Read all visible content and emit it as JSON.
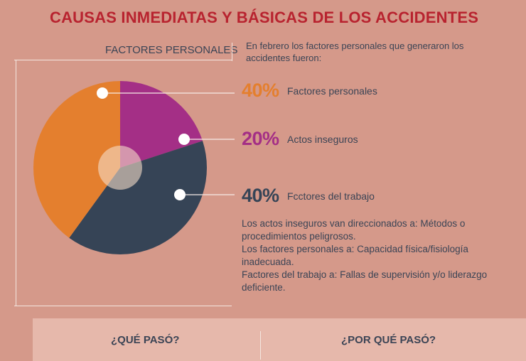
{
  "header": {
    "title": "CAUSAS INMEDIATAS Y BÁSICAS DE LOS ACCIDENTES",
    "section_label": "FACTORES PERSONALES"
  },
  "intro": "En febrero los factores personales que generaron los accidentes fueron:",
  "chart_data": {
    "type": "pie",
    "slices": [
      {
        "label": "Factores personales",
        "value": 40,
        "display": "40%",
        "color": "#e47f2e"
      },
      {
        "label": "Actos inseguros",
        "value": 20,
        "display": "20%",
        "color": "#a42f86"
      },
      {
        "label": "Fcctores del trabajo",
        "value": 40,
        "display": "40%",
        "color": "#364456"
      }
    ]
  },
  "notes": [
    "Los actos inseguros van direccionados a: Métodos o procedimientos peligrosos.",
    "Los factores personales a: Capacidad física/fisiología inadecuada.",
    "Factores del trabajo a: Fallas de supervisión y/o liderazgo deficiente."
  ],
  "bottom": {
    "left_heading": "¿QUÉ PASÓ?",
    "right_heading": "¿POR QUÉ PASÓ?"
  }
}
